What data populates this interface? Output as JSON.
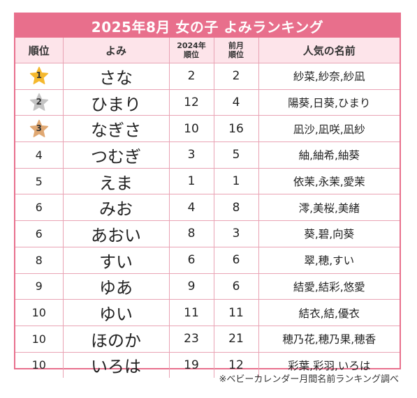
{
  "title": "2025年8月 女の子 よみランキング",
  "headers": {
    "rank": "順位",
    "yomi": "よみ",
    "prev_year_line1": "2024年",
    "prev_year_line2": "順位",
    "prev_month_line1": "前月",
    "prev_month_line2": "順位",
    "names": "人気の名前"
  },
  "medal_colors": {
    "gold": "#f5b82e",
    "silver": "#c4c4c4",
    "bronze": "#e0a872"
  },
  "rows": [
    {
      "rank": "1",
      "medal": "gold",
      "yomi": "さな",
      "prev_year": "2",
      "prev_month": "2",
      "names": "紗菜,紗奈,紗凪"
    },
    {
      "rank": "2",
      "medal": "silver",
      "yomi": "ひまり",
      "prev_year": "12",
      "prev_month": "4",
      "names": "陽葵,日葵,ひまり"
    },
    {
      "rank": "3",
      "medal": "bronze",
      "yomi": "なぎさ",
      "prev_year": "10",
      "prev_month": "16",
      "names": "凪沙,凪咲,凪紗"
    },
    {
      "rank": "4",
      "medal": "",
      "yomi": "つむぎ",
      "prev_year": "3",
      "prev_month": "5",
      "names": "紬,紬希,紬葵"
    },
    {
      "rank": "5",
      "medal": "",
      "yomi": "えま",
      "prev_year": "1",
      "prev_month": "1",
      "names": "依茉,永茉,愛茉"
    },
    {
      "rank": "6",
      "medal": "",
      "yomi": "みお",
      "prev_year": "4",
      "prev_month": "8",
      "names": "澪,美桜,美緒"
    },
    {
      "rank": "6",
      "medal": "",
      "yomi": "あおい",
      "prev_year": "8",
      "prev_month": "3",
      "names": "葵,碧,向葵"
    },
    {
      "rank": "8",
      "medal": "",
      "yomi": "すい",
      "prev_year": "6",
      "prev_month": "6",
      "names": "翠,穂,すい"
    },
    {
      "rank": "9",
      "medal": "",
      "yomi": "ゆあ",
      "prev_year": "9",
      "prev_month": "6",
      "names": "結愛,結彩,悠愛"
    },
    {
      "rank": "10",
      "medal": "",
      "yomi": "ゆい",
      "prev_year": "11",
      "prev_month": "11",
      "names": "結衣,結,優衣"
    },
    {
      "rank": "10",
      "medal": "",
      "yomi": "ほのか",
      "prev_year": "23",
      "prev_month": "21",
      "names": "穂乃花,穂乃果,穂香"
    },
    {
      "rank": "10",
      "medal": "",
      "yomi": "いろは",
      "prev_year": "19",
      "prev_month": "12",
      "names": "彩葉,彩羽,いろは"
    }
  ],
  "footer": "※ベビーカレンダー月間名前ランキング調べ"
}
